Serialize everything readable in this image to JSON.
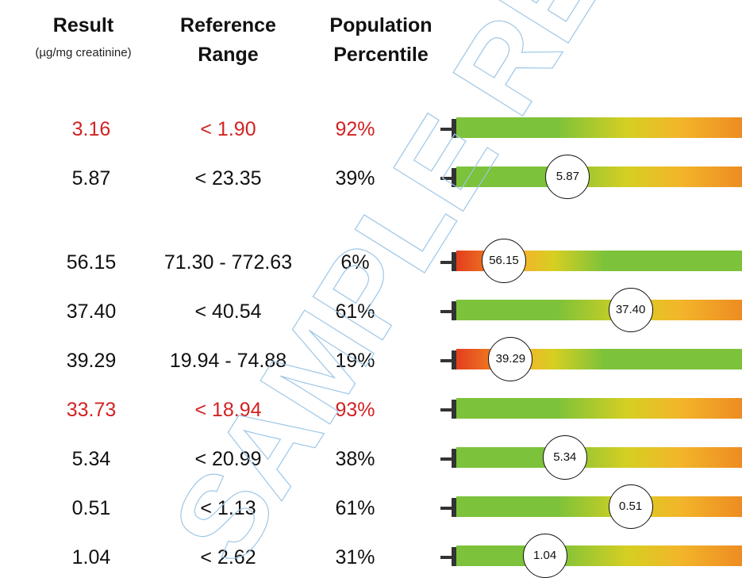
{
  "headers": {
    "result": "Result",
    "result_unit": "(µg/mg creatinine)",
    "reference_line1": "Reference",
    "reference_line2": "Range",
    "percentile_line1": "Population",
    "percentile_line2": "Percentile"
  },
  "rows": [
    {
      "result": "3.16",
      "range": "< 1.90",
      "percentile": "92%",
      "flagged": true,
      "marker": "",
      "percentile_value": 0.92
    },
    {
      "result": "5.87",
      "range": "< 23.35",
      "percentile": "39%",
      "flagged": false,
      "marker": "5.87",
      "percentile_value": 0.39
    },
    {
      "result": "56.15",
      "range": "71.30 - 772.63",
      "percentile": "6%",
      "flagged": false,
      "marker": "56.15",
      "percentile_value": 0.06
    },
    {
      "result": "37.40",
      "range": "< 40.54",
      "percentile": "61%",
      "flagged": false,
      "marker": "37.40",
      "percentile_value": 0.61
    },
    {
      "result": "39.29",
      "range": "19.94 - 74.88",
      "percentile": "19%",
      "flagged": false,
      "marker": "39.29",
      "percentile_value": 0.19
    },
    {
      "result": "33.73",
      "range": "< 18.94",
      "percentile": "93%",
      "flagged": true,
      "marker": "",
      "percentile_value": 0.93
    },
    {
      "result": "5.34",
      "range": "< 20.99",
      "percentile": "38%",
      "flagged": false,
      "marker": "5.34",
      "percentile_value": 0.38
    },
    {
      "result": "0.51",
      "range": "< 1.13",
      "percentile": "61%",
      "flagged": false,
      "marker": "0.51",
      "percentile_value": 0.61
    },
    {
      "result": "1.04",
      "range": "< 2.62",
      "percentile": "31%",
      "flagged": false,
      "marker": "1.04",
      "percentile_value": 0.31
    }
  ],
  "watermark": "SAMPLE REPORT",
  "colors": {
    "flag": "#d32222",
    "green": "#7cc23a",
    "yellow": "#d6cf22",
    "orange": "#ee8c22",
    "red": "#e33e1e"
  }
}
